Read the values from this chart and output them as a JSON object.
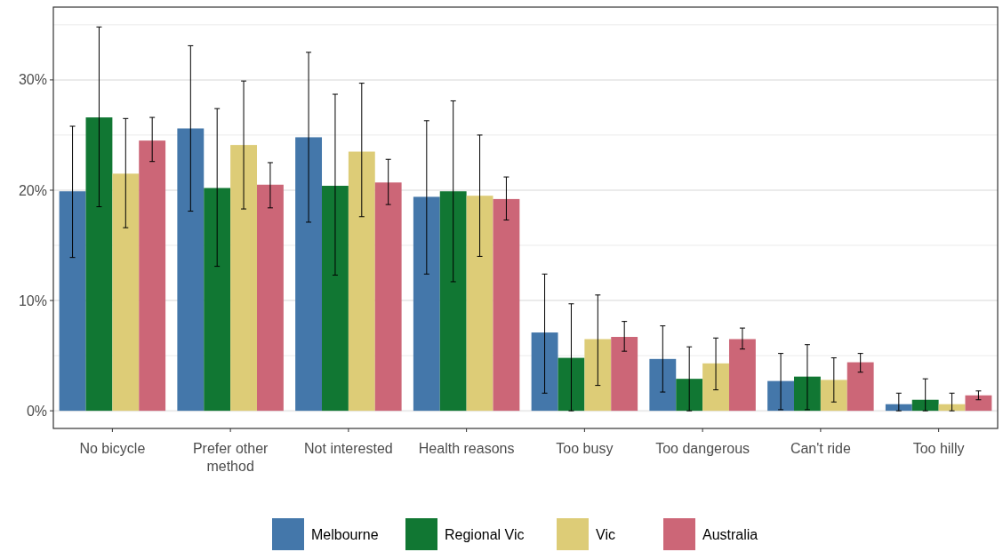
{
  "chart_data": {
    "type": "bar",
    "categories": [
      "No bicycle",
      "Prefer other method",
      "Not interested",
      "Health reasons",
      "Too busy",
      "Too dangerous",
      "Can't ride",
      "Too hilly"
    ],
    "series": [
      {
        "name": "Melbourne",
        "color": "#4477aa",
        "values": [
          19.9,
          25.6,
          24.8,
          19.4,
          7.1,
          4.7,
          2.7,
          0.6
        ],
        "errors": [
          [
            13.9,
            25.8
          ],
          [
            18.1,
            33.1
          ],
          [
            17.1,
            32.5
          ],
          [
            12.4,
            26.3
          ],
          [
            1.6,
            12.4
          ],
          [
            1.7,
            7.7
          ],
          [
            0.1,
            5.2
          ],
          [
            0,
            1.6
          ]
        ]
      },
      {
        "name": "Regional Vic",
        "color": "#117733",
        "values": [
          26.6,
          20.2,
          20.4,
          19.9,
          4.8,
          2.9,
          3.1,
          1.0
        ],
        "errors": [
          [
            18.5,
            34.8
          ],
          [
            13.1,
            27.4
          ],
          [
            12.3,
            28.7
          ],
          [
            11.7,
            28.1
          ],
          [
            0,
            9.7
          ],
          [
            0,
            5.8
          ],
          [
            0.1,
            6.0
          ],
          [
            0,
            2.9
          ]
        ]
      },
      {
        "name": "Vic",
        "color": "#ddcc77",
        "values": [
          21.5,
          24.1,
          23.5,
          19.5,
          6.5,
          4.3,
          2.8,
          0.6
        ],
        "errors": [
          [
            16.6,
            26.5
          ],
          [
            18.3,
            29.9
          ],
          [
            17.6,
            29.7
          ],
          [
            14.0,
            25.0
          ],
          [
            2.3,
            10.5
          ],
          [
            1.9,
            6.6
          ],
          [
            0.8,
            4.8
          ],
          [
            0,
            1.6
          ]
        ]
      },
      {
        "name": "Australia",
        "color": "#cc6677",
        "values": [
          24.5,
          20.5,
          20.7,
          19.2,
          6.7,
          6.5,
          4.4,
          1.4
        ],
        "errors": [
          [
            22.6,
            26.6
          ],
          [
            18.4,
            22.5
          ],
          [
            18.7,
            22.8
          ],
          [
            17.3,
            21.2
          ],
          [
            5.4,
            8.1
          ],
          [
            5.6,
            7.5
          ],
          [
            3.5,
            5.2
          ],
          [
            1.0,
            1.8
          ]
        ]
      }
    ],
    "ylim": [
      -1.6,
      36.6
    ],
    "yticks": [
      {
        "value": 0,
        "label": "0%"
      },
      {
        "value": 5,
        "label": null
      },
      {
        "value": 10,
        "label": "10%"
      },
      {
        "value": 15,
        "label": null
      },
      {
        "value": 20,
        "label": "20%"
      },
      {
        "value": 25,
        "label": null
      },
      {
        "value": 30,
        "label": "30%"
      },
      {
        "value": 35,
        "label": null
      }
    ],
    "grid": "y",
    "legend": "bottom"
  }
}
